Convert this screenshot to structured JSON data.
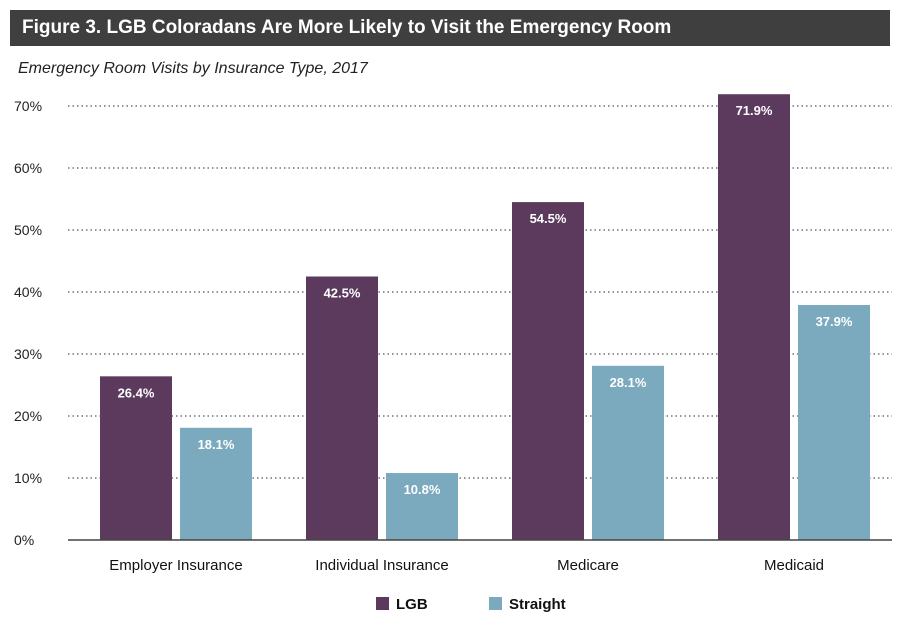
{
  "header": {
    "title": "Figure 3. LGB Coloradans Are More Likely to Visit the Emergency Room"
  },
  "chart_data": {
    "type": "bar",
    "title": "Figure 3. LGB Coloradans Are More Likely to Visit the Emergency Room",
    "subtitle": "Emergency Room Visits by Insurance Type, 2017",
    "xlabel": "",
    "ylabel": "",
    "categories": [
      "Employer Insurance",
      "Individual Insurance",
      "Medicare",
      "Medicaid"
    ],
    "series": [
      {
        "name": "LGB",
        "color": "#5c3a5e",
        "values": [
          26.4,
          42.5,
          54.5,
          71.9
        ],
        "labels": [
          "26.4%",
          "42.5%",
          "54.5%",
          "71.9%"
        ]
      },
      {
        "name": "Straight",
        "color": "#7ba9bd",
        "values": [
          18.1,
          10.8,
          28.1,
          37.9
        ],
        "labels": [
          "18.1%",
          "10.8%",
          "28.1%",
          "37.9%"
        ]
      }
    ],
    "ylim": [
      0,
      70
    ],
    "yticks": [
      0,
      10,
      20,
      30,
      40,
      50,
      60,
      70
    ],
    "ytick_labels": [
      "0%",
      "10%",
      "20%",
      "30%",
      "40%",
      "50%",
      "60%",
      "70%"
    ],
    "grid": "dotted horizontal",
    "legend": "bottom-center"
  }
}
